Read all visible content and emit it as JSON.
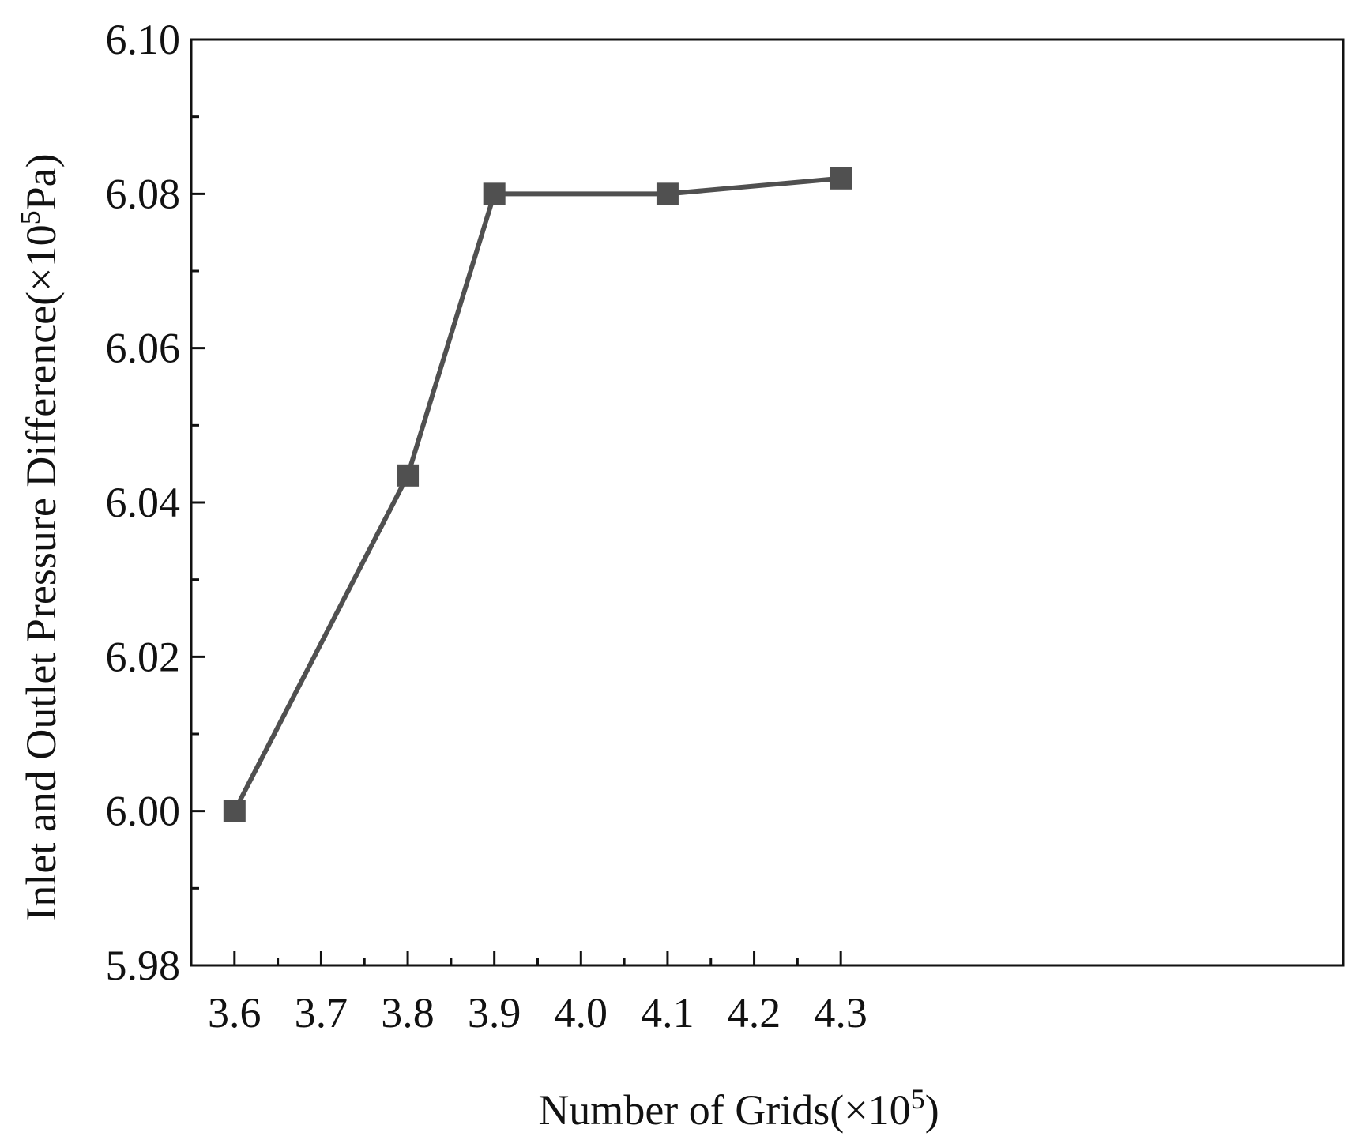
{
  "chart_data": {
    "type": "line",
    "title": "",
    "xlabel": "Number of Grids(×10",
    "xlabel_sup": "5",
    "xlabel_end": ")",
    "ylabel": "Inlet and Outlet Pressure Difference(×10",
    "ylabel_sup": "5",
    "ylabel_end": "Pa)",
    "xlim": [
      3.55,
      4.88
    ],
    "ylim": [
      5.98,
      6.1
    ],
    "x_ticks": [
      "3.6",
      "3.7",
      "3.8",
      "3.9",
      "4.0",
      "4.1",
      "4.2",
      "4.3"
    ],
    "y_ticks": [
      "5.98",
      "6.00",
      "6.02",
      "6.04",
      "6.06",
      "6.08",
      "6.10"
    ],
    "grid": false,
    "colors": {
      "series": "#505050",
      "axis": "#111111"
    },
    "series": [
      {
        "marker": "square",
        "x": [
          3.6,
          3.8,
          3.9,
          4.1,
          4.3
        ],
        "y": [
          6.0,
          6.0435,
          6.08,
          6.08,
          6.082
        ]
      }
    ]
  }
}
